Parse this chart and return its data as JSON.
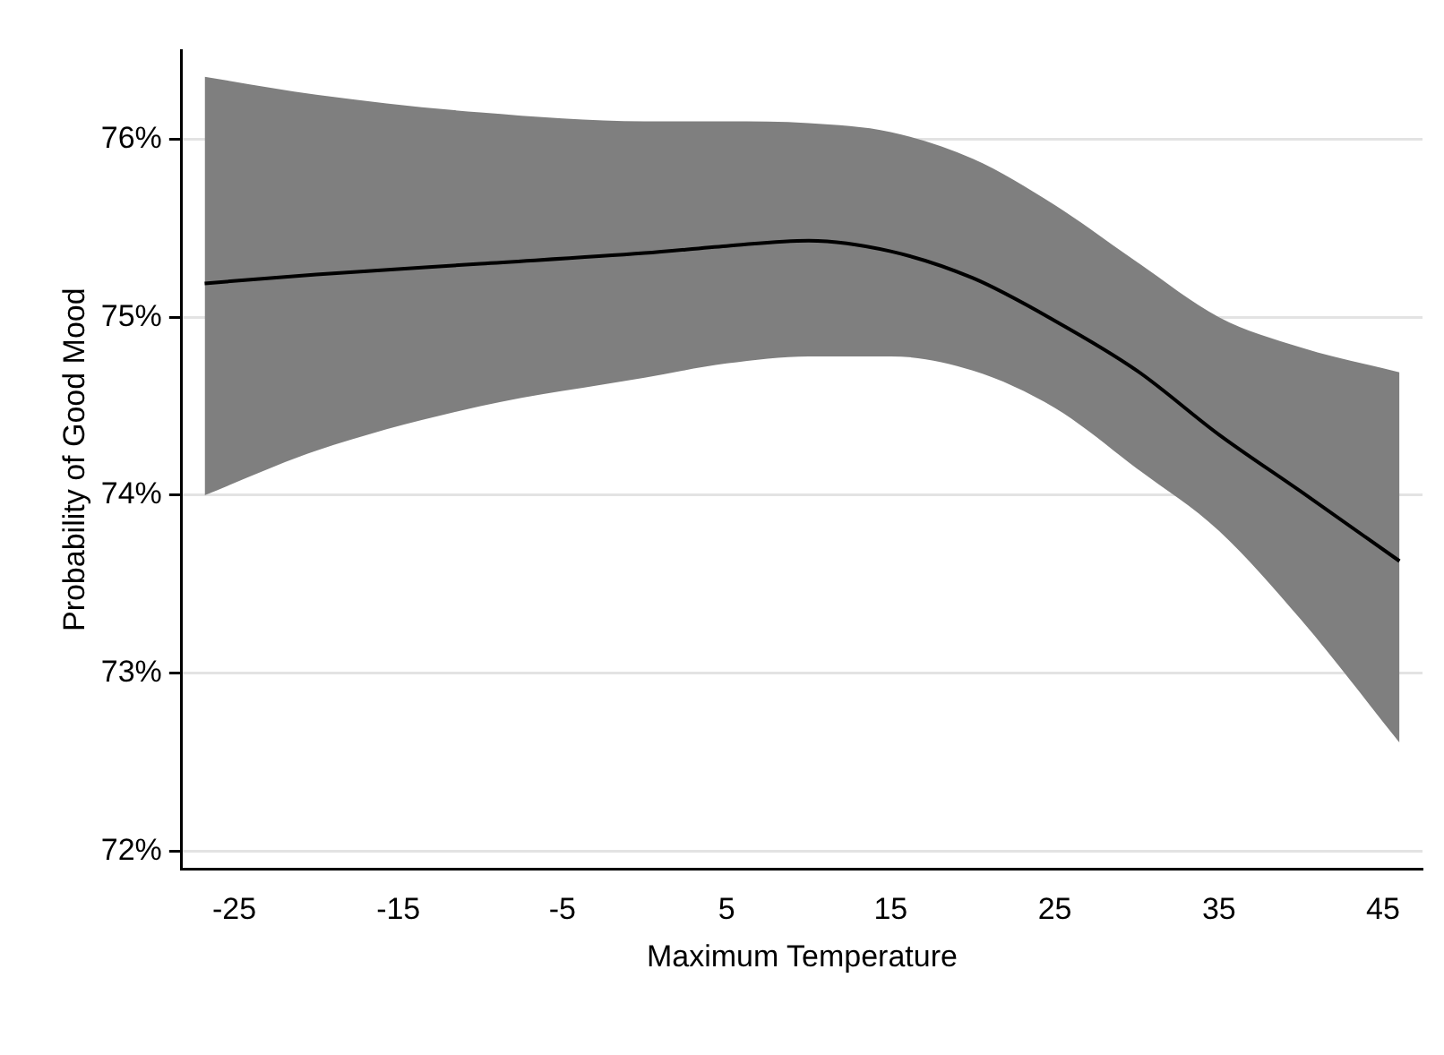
{
  "chart_data": {
    "type": "line",
    "xlabel": "Maximum Temperature",
    "ylabel": "Probability of Good Mood",
    "x": [
      -26.8,
      -20,
      -10,
      0,
      5,
      10,
      15,
      20,
      25,
      30,
      35,
      40,
      46
    ],
    "series": [
      {
        "color": "#000000",
        "values": [
          75.19,
          75.24,
          75.3,
          75.36,
          75.4,
          75.43,
          75.37,
          75.22,
          74.98,
          74.7,
          74.34,
          74.02,
          73.63
        ],
        "lower": [
          74.0,
          74.25,
          74.5,
          74.66,
          74.74,
          74.78,
          74.78,
          74.7,
          74.49,
          74.15,
          73.8,
          73.3,
          72.61
        ],
        "upper": [
          76.35,
          76.25,
          76.15,
          76.1,
          76.1,
          76.09,
          76.04,
          75.89,
          75.63,
          75.31,
          75.0,
          74.83,
          74.69
        ]
      }
    ],
    "xlim": [
      -28.2,
      47.4
    ],
    "xticks": [
      -25,
      -15,
      -5,
      5,
      15,
      25,
      35,
      45
    ],
    "ylim": [
      71.9,
      76.5
    ],
    "yticks": [
      {
        "value": 72,
        "label": "72%"
      },
      {
        "value": 73,
        "label": "73%"
      },
      {
        "value": 74,
        "label": "74%"
      },
      {
        "value": 75,
        "label": "75%"
      },
      {
        "value": 76,
        "label": "76%"
      }
    ],
    "grid": "y",
    "legend": false,
    "marker": "none",
    "line_style": "solid"
  }
}
